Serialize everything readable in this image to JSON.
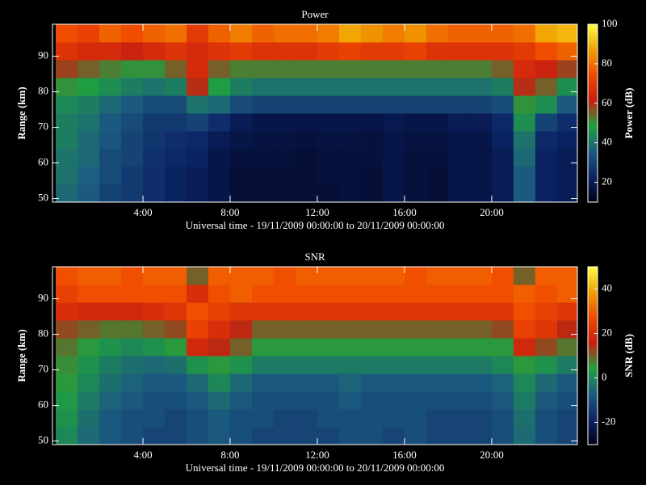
{
  "chart_data": [
    {
      "type": "heatmap",
      "title": "Power",
      "xlabel": "Universal time - 19/11/2009 00:00:00 to 20/11/2009 00:00:00",
      "ylabel": "Range (km)",
      "colorbar_label": "Power (dB)",
      "xbins": [
        0,
        1,
        2,
        3,
        4,
        5,
        6,
        7,
        8,
        9,
        10,
        11,
        12,
        13,
        14,
        15,
        16,
        17,
        18,
        19,
        20,
        21,
        22,
        23,
        24
      ],
      "ybins": [
        49,
        54,
        59,
        64,
        69,
        74,
        79,
        84,
        89,
        94,
        99
      ],
      "values": [
        [
          38,
          35,
          30,
          28,
          25,
          22,
          20,
          18,
          15,
          15,
          15,
          15,
          15,
          16,
          15,
          18,
          16,
          15,
          18,
          18,
          20,
          35,
          22,
          20
        ],
        [
          40,
          36,
          32,
          28,
          25,
          22,
          20,
          18,
          15,
          15,
          15,
          15,
          16,
          16,
          15,
          18,
          16,
          15,
          18,
          18,
          20,
          35,
          22,
          20
        ],
        [
          40,
          38,
          32,
          30,
          26,
          24,
          22,
          18,
          16,
          16,
          16,
          15,
          16,
          16,
          16,
          18,
          16,
          16,
          18,
          18,
          20,
          38,
          22,
          20
        ],
        [
          42,
          38,
          34,
          30,
          27,
          25,
          24,
          20,
          18,
          17,
          17,
          16,
          17,
          17,
          16,
          18,
          17,
          17,
          18,
          18,
          22,
          40,
          24,
          22
        ],
        [
          42,
          40,
          35,
          32,
          28,
          28,
          30,
          25,
          20,
          18,
          18,
          18,
          18,
          18,
          18,
          19,
          18,
          18,
          20,
          20,
          24,
          45,
          30,
          25
        ],
        [
          44,
          42,
          38,
          35,
          32,
          32,
          40,
          38,
          32,
          30,
          30,
          30,
          30,
          30,
          30,
          30,
          30,
          30,
          30,
          30,
          32,
          50,
          45,
          35
        ],
        [
          50,
          48,
          45,
          42,
          40,
          42,
          60,
          48,
          42,
          40,
          40,
          40,
          40,
          40,
          40,
          40,
          40,
          40,
          40,
          40,
          42,
          60,
          55,
          45
        ],
        [
          58,
          55,
          52,
          50,
          50,
          55,
          65,
          55,
          52,
          52,
          52,
          52,
          52,
          52,
          52,
          52,
          52,
          52,
          52,
          52,
          55,
          65,
          62,
          58
        ],
        [
          68,
          65,
          65,
          62,
          65,
          68,
          65,
          68,
          70,
          68,
          68,
          68,
          70,
          72,
          70,
          70,
          72,
          68,
          68,
          68,
          68,
          70,
          75,
          78
        ],
        [
          75,
          72,
          78,
          75,
          78,
          80,
          70,
          78,
          82,
          78,
          80,
          80,
          82,
          88,
          85,
          82,
          85,
          80,
          78,
          78,
          78,
          80,
          88,
          90
        ]
      ],
      "xlim": [
        -0.15,
        23.93
      ],
      "ylim": [
        49,
        99
      ],
      "xticks": [
        {
          "value": 4,
          "label": "4:00"
        },
        {
          "value": 8,
          "label": "8:00"
        },
        {
          "value": 12,
          "label": "12:00"
        },
        {
          "value": 16,
          "label": "16:00"
        },
        {
          "value": 20,
          "label": "20:00"
        }
      ],
      "yticks": [
        50,
        60,
        70,
        80,
        90
      ],
      "zlim": [
        10,
        100
      ],
      "zticks": [
        20,
        40,
        60,
        80,
        100
      ],
      "colormap": [
        "#000018",
        "#0c2466",
        "#1c5c80",
        "#1fa040",
        "#c82010",
        "#f04800",
        "#f0a000",
        "#ffff40"
      ]
    },
    {
      "type": "heatmap",
      "title": "SNR",
      "xlabel": "Universal time - 19/11/2009 00:00:00 to 20/11/2009 00:00:00",
      "ylabel": "Range (km)",
      "colorbar_label": "SNR (dB)",
      "xbins": [
        0,
        1,
        2,
        3,
        4,
        5,
        6,
        7,
        8,
        9,
        10,
        11,
        12,
        13,
        14,
        15,
        16,
        17,
        18,
        19,
        20,
        21,
        22,
        23,
        24
      ],
      "ybins": [
        49,
        54,
        59,
        64,
        69,
        74,
        79,
        84,
        89,
        94,
        99
      ],
      "values": [
        [
          0,
          -5,
          -8,
          -10,
          -12,
          -12,
          -10,
          -8,
          -10,
          -12,
          -12,
          -12,
          -12,
          -10,
          -10,
          -12,
          -10,
          -12,
          -12,
          -12,
          -10,
          -5,
          -10,
          -12
        ],
        [
          2,
          -4,
          -8,
          -10,
          -10,
          -12,
          -10,
          -8,
          -10,
          -10,
          -12,
          -12,
          -10,
          -10,
          -10,
          -10,
          -10,
          -12,
          -12,
          -12,
          -10,
          -4,
          -10,
          -12
        ],
        [
          3,
          -2,
          -6,
          -8,
          -10,
          -10,
          -8,
          -5,
          -8,
          -10,
          -10,
          -10,
          -10,
          -8,
          -10,
          -10,
          -10,
          -10,
          -10,
          -10,
          -8,
          -2,
          -8,
          -10
        ],
        [
          5,
          0,
          -4,
          -6,
          -8,
          -8,
          -5,
          0,
          -5,
          -8,
          -8,
          -8,
          -8,
          -6,
          -8,
          -8,
          -8,
          -8,
          -8,
          -8,
          -6,
          0,
          -5,
          -8
        ],
        [
          6,
          2,
          -2,
          -4,
          -5,
          -4,
          2,
          5,
          2,
          -2,
          -2,
          -2,
          -2,
          -2,
          -2,
          -2,
          -2,
          -2,
          -2,
          -2,
          0,
          5,
          2,
          -2
        ],
        [
          8,
          5,
          2,
          0,
          2,
          5,
          18,
          15,
          10,
          5,
          5,
          5,
          5,
          5,
          5,
          5,
          5,
          5,
          5,
          5,
          5,
          18,
          12,
          8
        ],
        [
          12,
          10,
          8,
          8,
          10,
          12,
          25,
          20,
          15,
          10,
          10,
          10,
          10,
          10,
          10,
          10,
          10,
          10,
          10,
          10,
          12,
          25,
          22,
          15
        ],
        [
          20,
          18,
          18,
          18,
          20,
          22,
          28,
          25,
          22,
          22,
          22,
          22,
          22,
          22,
          22,
          22,
          22,
          22,
          22,
          22,
          22,
          28,
          25,
          22
        ],
        [
          25,
          28,
          28,
          28,
          28,
          28,
          20,
          28,
          30,
          28,
          28,
          28,
          28,
          28,
          28,
          28,
          28,
          28,
          28,
          28,
          28,
          30,
          28,
          30
        ],
        [
          28,
          30,
          30,
          28,
          30,
          30,
          10,
          30,
          30,
          30,
          28,
          30,
          30,
          30,
          30,
          30,
          28,
          30,
          30,
          30,
          28,
          10,
          30,
          30
        ]
      ],
      "xlim": [
        -0.15,
        23.93
      ],
      "ylim": [
        49,
        99
      ],
      "xticks": [
        {
          "value": 4,
          "label": "4:00"
        },
        {
          "value": 8,
          "label": "8:00"
        },
        {
          "value": 12,
          "label": "12:00"
        },
        {
          "value": 16,
          "label": "16:00"
        },
        {
          "value": 20,
          "label": "20:00"
        }
      ],
      "yticks": [
        50,
        60,
        70,
        80,
        90
      ],
      "zlim": [
        -30,
        50
      ],
      "zticks": [
        -20,
        0,
        20,
        40
      ],
      "colormap": [
        "#000018",
        "#0c2466",
        "#1c5c80",
        "#1fa040",
        "#c82010",
        "#f04800",
        "#f0a000",
        "#ffff40"
      ]
    }
  ]
}
